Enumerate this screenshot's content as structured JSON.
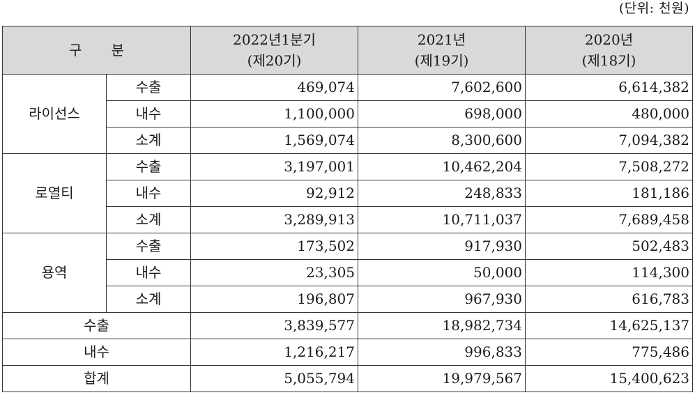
{
  "unit_label": "(단위: 천원)",
  "header": {
    "category": "구 분",
    "periods": [
      {
        "line1": "2022년1분기",
        "line2": "(제20기)"
      },
      {
        "line1": "2021년",
        "line2": "(제19기)"
      },
      {
        "line1": "2020년",
        "line2": "(제18기)"
      }
    ]
  },
  "groups": [
    {
      "name": "라이선스",
      "rows": [
        {
          "label": "수출",
          "values": [
            "469,074",
            "7,602,600",
            "6,614,382"
          ]
        },
        {
          "label": "내수",
          "values": [
            "1,100,000",
            "698,000",
            "480,000"
          ]
        },
        {
          "label": "소계",
          "values": [
            "1,569,074",
            "8,300,600",
            "7,094,382"
          ]
        }
      ]
    },
    {
      "name": "로열티",
      "rows": [
        {
          "label": "수출",
          "values": [
            "3,197,001",
            "10,462,204",
            "7,508,272"
          ]
        },
        {
          "label": "내수",
          "values": [
            "92,912",
            "248,833",
            "181,186"
          ]
        },
        {
          "label": "소계",
          "values": [
            "3,289,913",
            "10,711,037",
            "7,689,458"
          ]
        }
      ]
    },
    {
      "name": "용역",
      "rows": [
        {
          "label": "수출",
          "values": [
            "173,502",
            "917,930",
            "502,483"
          ]
        },
        {
          "label": "내수",
          "values": [
            "23,305",
            "50,000",
            "114,300"
          ]
        },
        {
          "label": "소계",
          "values": [
            "196,807",
            "967,930",
            "616,783"
          ]
        }
      ]
    }
  ],
  "totals": [
    {
      "label": "수출",
      "values": [
        "3,839,577",
        "18,982,734",
        "14,625,137"
      ]
    },
    {
      "label": "내수",
      "values": [
        "1,216,217",
        "996,833",
        "775,486"
      ]
    },
    {
      "label": "합계",
      "values": [
        "5,055,794",
        "19,979,567",
        "15,400,623"
      ]
    }
  ]
}
